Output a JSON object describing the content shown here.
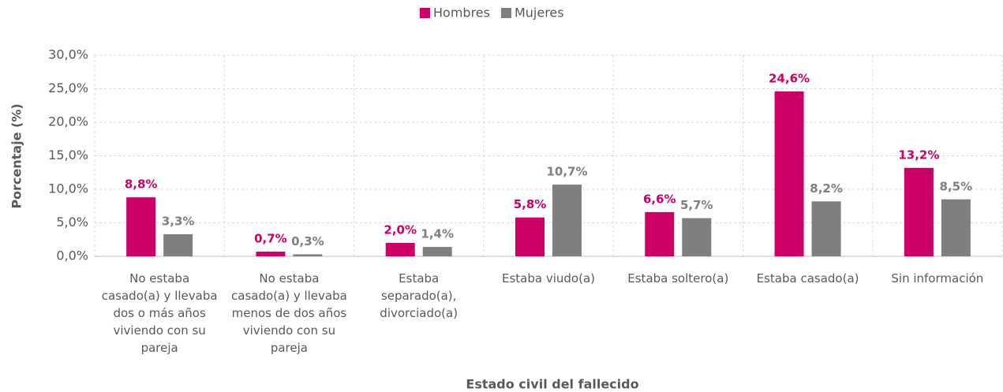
{
  "chart_data": {
    "type": "bar",
    "x_label": "Estado civil del fallecido",
    "y_label": "Porcentaje (%)",
    "categories": [
      "No estaba casado(a) y llevaba dos o más años viviendo con su pareja",
      "No estaba casado(a) y llevaba menos de dos años viviendo con su pareja",
      "Estaba separado(a), divorciado(a)",
      "Estaba viudo(a)",
      "Estaba soltero(a)",
      "Estaba casado(a)",
      "Sin información"
    ],
    "series": [
      {
        "name": "Hombres",
        "color": "#cc0066",
        "values": [
          8.8,
          0.7,
          2.0,
          5.8,
          6.6,
          24.6,
          13.2
        ],
        "value_labels": [
          "8,8%",
          "0,7%",
          "2,0%",
          "5,8%",
          "6,6%",
          "24,6%",
          "13,2%"
        ]
      },
      {
        "name": "Mujeres",
        "color": "#7f7f7f",
        "values": [
          3.3,
          0.3,
          1.4,
          10.7,
          5.7,
          8.2,
          8.5
        ],
        "value_labels": [
          "3,3%",
          "0,3%",
          "1,4%",
          "10,7%",
          "5,7%",
          "8,2%",
          "8,5%"
        ]
      }
    ],
    "ylim": [
      0,
      30
    ],
    "yticks": [
      {
        "value": 0,
        "label": "0,0%"
      },
      {
        "value": 5,
        "label": "5,0%"
      },
      {
        "value": 10,
        "label": "10,0%"
      },
      {
        "value": 15,
        "label": "15,0%"
      },
      {
        "value": 20,
        "label": "20,0%"
      },
      {
        "value": 25,
        "label": "25,0%"
      },
      {
        "value": 30,
        "label": "30,0%"
      }
    ],
    "grid": true,
    "legend": "top"
  }
}
